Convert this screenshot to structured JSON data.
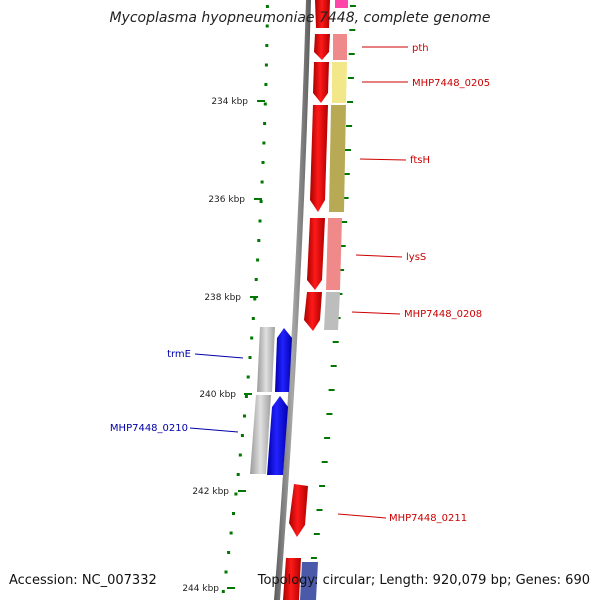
{
  "title": "Mycoplasma hyopneumoniae 7448, complete genome",
  "accession_text": "Accession: NC_007332",
  "summary_text": "Topology: circular; Length: 920,079 bp; Genes: 690",
  "scale": {
    "ticks": [
      {
        "value": 234,
        "label": "234 kbp"
      },
      {
        "value": 236,
        "label": "236 kbp"
      },
      {
        "value": 238,
        "label": "238 kbp"
      },
      {
        "value": 240,
        "label": "240 kbp"
      },
      {
        "value": 242,
        "label": "242 kbp"
      },
      {
        "value": 244,
        "label": "244 kbp"
      }
    ]
  },
  "genes": [
    {
      "name": "pth",
      "strand": "forward",
      "color": "#ee0000"
    },
    {
      "name": "MHP7448_0205",
      "strand": "forward",
      "color": "#ee0000"
    },
    {
      "name": "ftsH",
      "strand": "forward",
      "color": "#ee0000"
    },
    {
      "name": "lysS",
      "strand": "forward",
      "color": "#ee0000"
    },
    {
      "name": "MHP7448_0208",
      "strand": "forward",
      "color": "#ee0000"
    },
    {
      "name": "trmE",
      "strand": "reverse",
      "color": "#0000ee"
    },
    {
      "name": "MHP7448_0210",
      "strand": "reverse",
      "color": "#0000ee"
    },
    {
      "name": "MHP7448_0211",
      "strand": "forward",
      "color": "#ee0000"
    }
  ],
  "colors": {
    "forward_gene": "#ee0000",
    "reverse_gene": "#0000ee",
    "forward_label": "#cc0000",
    "reverse_label": "#0000aa",
    "backbone": "#808080",
    "tick": "#007700",
    "cog_pth": "#f08a8a",
    "cog_0205": "#f2e88a",
    "cog_ftsH": "#b8aa55",
    "cog_lysS": "#f08a8a",
    "cog_0208": "#bdbdbd",
    "cog_reverse": "#bdbdbd"
  }
}
